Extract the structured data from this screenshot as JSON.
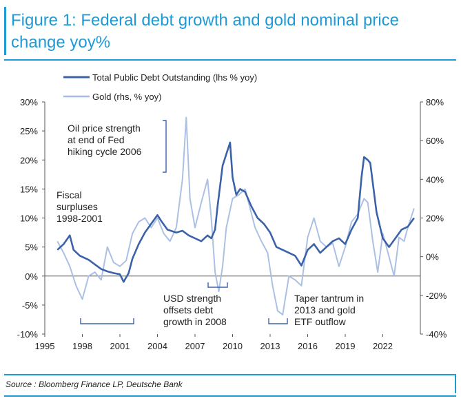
{
  "figure": {
    "title": "Figure 1: Federal debt growth and gold nominal price change yoy%",
    "source": "Source : Bloomberg Finance LP, Deutsche Bank"
  },
  "chart_data": {
    "type": "line",
    "legend": {
      "placement": "top",
      "items": [
        "Total Public Debt Outstanding (lhs % yoy)",
        "Gold (rhs, % yoy)"
      ]
    },
    "x_ticks": [
      "1995",
      "1998",
      "2001",
      "2004",
      "2007",
      "2010",
      "2013",
      "2016",
      "2019",
      "2022"
    ],
    "xlim": [
      1995,
      2025
    ],
    "y_left": {
      "ticks": [
        "30%",
        "25%",
        "20%",
        "15%",
        "10%",
        "5%",
        "0%",
        "-5%",
        "-10%"
      ],
      "ylim": [
        -10,
        30
      ]
    },
    "y_right": {
      "ticks": [
        "80%",
        "60%",
        "40%",
        "20%",
        "0%",
        "-20%",
        "-40%"
      ],
      "ylim": [
        -40,
        80
      ]
    },
    "grid": false,
    "colors": {
      "debt": "#3b62a8",
      "gold": "#a6bde3",
      "accent": "#1e9bd7"
    },
    "series": [
      {
        "name": "Total Public Debt Outstanding (lhs % yoy)",
        "axis": "left",
        "x": [
          1996.0,
          1996.5,
          1997.0,
          1997.3,
          1997.8,
          1998.5,
          1999.0,
          1999.5,
          2000.0,
          2000.5,
          2001.0,
          2001.3,
          2001.7,
          2002.0,
          2002.5,
          2003.0,
          2003.5,
          2004.0,
          2004.3,
          2004.8,
          2005.5,
          2006.0,
          2006.5,
          2007.0,
          2007.5,
          2008.0,
          2008.3,
          2008.6,
          2008.8,
          2009.2,
          2009.5,
          2009.8,
          2010.0,
          2010.3,
          2010.6,
          2011.0,
          2011.5,
          2012.0,
          2012.5,
          2013.0,
          2013.5,
          2014.0,
          2014.5,
          2015.0,
          2015.5,
          2016.0,
          2016.5,
          2017.0,
          2017.5,
          2018.0,
          2018.5,
          2019.0,
          2019.5,
          2020.0,
          2020.3,
          2020.5,
          2020.8,
          2021.0,
          2021.5,
          2022.0,
          2022.5,
          2023.0,
          2023.5,
          2024.0,
          2024.5
        ],
        "values": [
          4.5,
          5.5,
          7.0,
          4.5,
          3.5,
          2.8,
          2.0,
          1.2,
          0.8,
          0.5,
          0.3,
          -1.0,
          0.5,
          3.0,
          5.5,
          7.5,
          9.0,
          10.5,
          9.5,
          8.0,
          7.5,
          7.8,
          7.0,
          6.5,
          6.0,
          7.0,
          6.5,
          8.0,
          12.0,
          19.0,
          21.0,
          23.0,
          17.0,
          14.0,
          15.0,
          14.5,
          12.0,
          10.0,
          9.0,
          7.5,
          5.0,
          4.5,
          4.0,
          3.5,
          1.8,
          4.5,
          5.5,
          4.0,
          5.0,
          6.0,
          6.5,
          5.5,
          8.0,
          10.0,
          17.0,
          20.5,
          20.0,
          19.5,
          11.0,
          6.5,
          5.0,
          6.5,
          8.0,
          8.5,
          10.0
        ]
      },
      {
        "name": "Gold (rhs, % yoy)",
        "axis": "right",
        "x": [
          1996.0,
          1996.5,
          1997.0,
          1997.5,
          1998.0,
          1998.5,
          1999.0,
          1999.5,
          2000.0,
          2000.5,
          2001.0,
          2001.5,
          2002.0,
          2002.5,
          2003.0,
          2003.5,
          2004.0,
          2004.5,
          2005.0,
          2005.5,
          2006.0,
          2006.3,
          2006.6,
          2007.0,
          2007.5,
          2008.0,
          2008.3,
          2008.6,
          2008.9,
          2009.2,
          2009.5,
          2010.0,
          2010.5,
          2011.0,
          2011.4,
          2011.8,
          2012.3,
          2012.8,
          2013.2,
          2013.6,
          2014.0,
          2014.5,
          2015.0,
          2015.5,
          2016.0,
          2016.5,
          2017.0,
          2017.5,
          2018.0,
          2018.5,
          2019.0,
          2019.5,
          2020.0,
          2020.5,
          2020.8,
          2021.2,
          2021.6,
          2022.0,
          2022.5,
          2022.9,
          2023.3,
          2023.7,
          2024.0,
          2024.5
        ],
        "values": [
          8,
          2,
          -5,
          -15,
          -22,
          -10,
          -8,
          -12,
          5,
          -3,
          -5,
          -2,
          12,
          18,
          20,
          15,
          20,
          12,
          8,
          15,
          40,
          72,
          30,
          15,
          28,
          40,
          20,
          -8,
          -18,
          -5,
          15,
          30,
          32,
          35,
          25,
          15,
          8,
          2,
          -15,
          -28,
          -30,
          -10,
          -12,
          -15,
          10,
          20,
          8,
          5,
          7,
          -5,
          5,
          18,
          22,
          30,
          28,
          8,
          -8,
          12,
          0,
          -10,
          10,
          8,
          15,
          25
        ]
      }
    ],
    "annotations": [
      "Oil price strength\nat end of Fed\nhiking cycle 2006",
      "Fiscal\nsurpluses\n1998-2001",
      "USD strength\noffsets debt\ngrowth in 2008",
      "Taper tantrum in\n2013 and gold\nETF outflow"
    ]
  }
}
